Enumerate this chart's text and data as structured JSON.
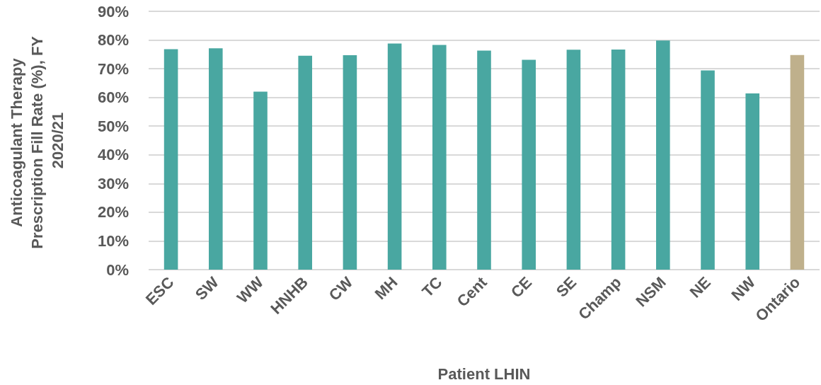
{
  "chart_data": {
    "type": "bar",
    "ylabel": "Anticoagulant Therapy Prescription Fill Rate (%), FY 2020/21",
    "xlabel": "Patient LHIN",
    "categories": [
      "ESC",
      "SW",
      "WW",
      "HNHB",
      "CW",
      "MH",
      "TC",
      "Cent",
      "CE",
      "SE",
      "Champ",
      "NSM",
      "NE",
      "NW",
      "Ontario"
    ],
    "values": [
      76.8,
      77.1,
      62.0,
      74.5,
      74.7,
      78.8,
      78.3,
      76.3,
      73.1,
      76.6,
      76.7,
      79.8,
      69.4,
      61.4,
      74.8
    ],
    "colors": [
      "#49a7a1",
      "#49a7a1",
      "#49a7a1",
      "#49a7a1",
      "#49a7a1",
      "#49a7a1",
      "#49a7a1",
      "#49a7a1",
      "#49a7a1",
      "#49a7a1",
      "#49a7a1",
      "#49a7a1",
      "#49a7a1",
      "#49a7a1",
      "#bfb08c"
    ],
    "ylim": [
      0,
      90
    ],
    "yticks": [
      {
        "value": 0,
        "label": "0%"
      },
      {
        "value": 10,
        "label": "10%"
      },
      {
        "value": 20,
        "label": "20%"
      },
      {
        "value": 30,
        "label": "30%"
      },
      {
        "value": 40,
        "label": "40%"
      },
      {
        "value": 50,
        "label": "50%"
      },
      {
        "value": 60,
        "label": "60%"
      },
      {
        "value": 70,
        "label": "70%"
      },
      {
        "value": 80,
        "label": "80%"
      },
      {
        "value": 90,
        "label": "90%"
      }
    ],
    "grid": "y"
  }
}
